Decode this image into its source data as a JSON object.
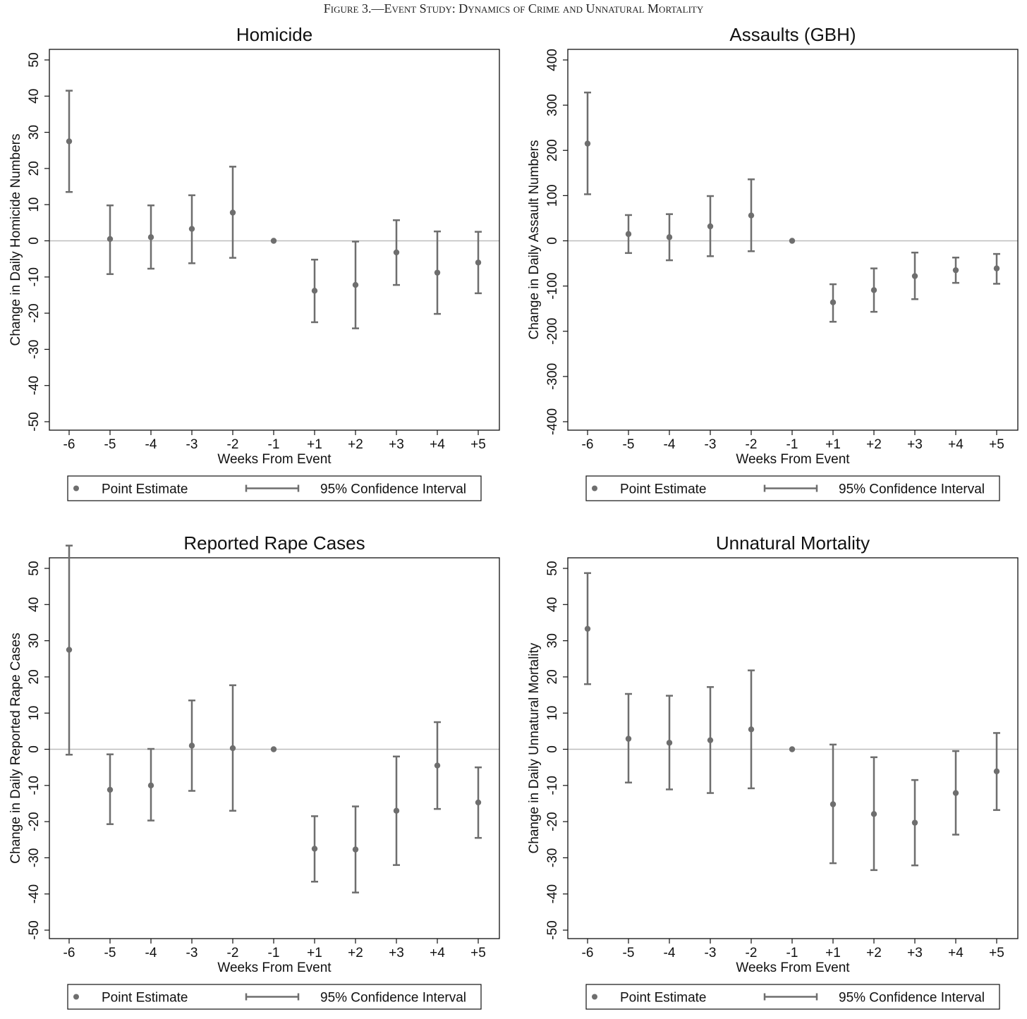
{
  "figure_title": "Figure 3.—Event Study: Dynamics of Crime and Unnatural Mortality",
  "colors": {
    "marker": "#6e6e6e",
    "zero_line": "#bdbdbd",
    "axis": "#111111"
  },
  "legend": {
    "point_label": "Point Estimate",
    "ci_label": "95% Confidence Interval"
  },
  "chart_data": [
    {
      "type": "scatter",
      "title": "Homicide",
      "xlabel": "Weeks From Event",
      "ylabel": "Change in Daily Homicide Numbers",
      "categories": [
        "-6",
        "-5",
        "-4",
        "-3",
        "-2",
        "-1",
        "+1",
        "+2",
        "+3",
        "+4",
        "+5"
      ],
      "ylim": [
        -50,
        50
      ],
      "yticks": [
        -50,
        -40,
        -30,
        -20,
        -10,
        0,
        10,
        20,
        30,
        40,
        50
      ],
      "series": [
        {
          "name": "Point Estimate",
          "values": [
            27.5,
            0.5,
            1.0,
            3.3,
            7.8,
            0,
            -13.8,
            -12.2,
            -3.2,
            -8.8,
            -6.0
          ]
        },
        {
          "name": "95% Confidence Interval",
          "lower": [
            13.5,
            -9.2,
            -7.7,
            -6.2,
            -4.7,
            0,
            -22.5,
            -24.2,
            -12.2,
            -20.2,
            -14.5
          ],
          "upper": [
            41.5,
            9.8,
            9.8,
            12.6,
            20.5,
            0,
            -5.2,
            -0.2,
            5.7,
            2.6,
            2.5
          ]
        }
      ]
    },
    {
      "type": "scatter",
      "title": "Assaults (GBH)",
      "xlabel": "Weeks From Event",
      "ylabel": "Change in Daily  Assault Numbers",
      "categories": [
        "-6",
        "-5",
        "-4",
        "-3",
        "-2",
        "-1",
        "+1",
        "+2",
        "+3",
        "+4",
        "+5"
      ],
      "ylim": [
        -400,
        400
      ],
      "yticks": [
        -400,
        -300,
        -200,
        -100,
        0,
        100,
        200,
        300,
        400
      ],
      "series": [
        {
          "name": "Point Estimate",
          "values": [
            215,
            15,
            8,
            32,
            56,
            0,
            -136,
            -109,
            -78,
            -65,
            -61
          ]
        },
        {
          "name": "95% Confidence Interval",
          "lower": [
            103,
            -27,
            -43,
            -34,
            -23,
            0,
            -179,
            -157,
            -129,
            -93,
            -95
          ],
          "upper": [
            328,
            57,
            59,
            99,
            136,
            0,
            -96,
            -61,
            -26,
            -37,
            -29
          ]
        }
      ]
    },
    {
      "type": "scatter",
      "title": "Reported Rape Cases",
      "xlabel": "Weeks From Event",
      "ylabel": "Change in Daily  Reported Rape Cases",
      "categories": [
        "-6",
        "-5",
        "-4",
        "-3",
        "-2",
        "-1",
        "+1",
        "+2",
        "+3",
        "+4",
        "+5"
      ],
      "ylim": [
        -50,
        50
      ],
      "yticks": [
        -50,
        -40,
        -30,
        -20,
        -10,
        0,
        10,
        20,
        30,
        40,
        50
      ],
      "series": [
        {
          "name": "Point Estimate",
          "values": [
            27.5,
            -11.2,
            -10.0,
            1.0,
            0.3,
            0,
            -27.5,
            -27.7,
            -17.0,
            -4.5,
            -14.7
          ]
        },
        {
          "name": "95% Confidence Interval",
          "lower": [
            -1.5,
            -20.7,
            -19.7,
            -11.5,
            -17.0,
            0,
            -36.6,
            -39.6,
            -32.0,
            -16.5,
            -24.5
          ],
          "upper": [
            56.3,
            -1.4,
            0.1,
            13.5,
            17.7,
            0,
            -18.5,
            -15.8,
            -2.0,
            7.5,
            -5.0
          ]
        }
      ]
    },
    {
      "type": "scatter",
      "title": "Unnatural Mortality",
      "xlabel": "Weeks From Event",
      "ylabel": "Change in Daily  Unnatural Mortality",
      "categories": [
        "-6",
        "-5",
        "-4",
        "-3",
        "-2",
        "-1",
        "+1",
        "+2",
        "+3",
        "+4",
        "+5"
      ],
      "ylim": [
        -50,
        50
      ],
      "yticks": [
        -50,
        -40,
        -30,
        -20,
        -10,
        0,
        10,
        20,
        30,
        40,
        50
      ],
      "series": [
        {
          "name": "Point Estimate",
          "values": [
            33.3,
            2.9,
            1.8,
            2.5,
            5.5,
            0,
            -15.2,
            -17.9,
            -20.3,
            -12.1,
            -6.1
          ]
        },
        {
          "name": "95% Confidence Interval",
          "lower": [
            18.0,
            -9.2,
            -11.1,
            -12.1,
            -10.8,
            0,
            -31.5,
            -33.4,
            -32.1,
            -23.6,
            -16.8
          ],
          "upper": [
            48.7,
            15.3,
            14.8,
            17.2,
            21.8,
            0,
            1.3,
            -2.2,
            -8.5,
            -0.5,
            4.5
          ]
        }
      ]
    }
  ]
}
